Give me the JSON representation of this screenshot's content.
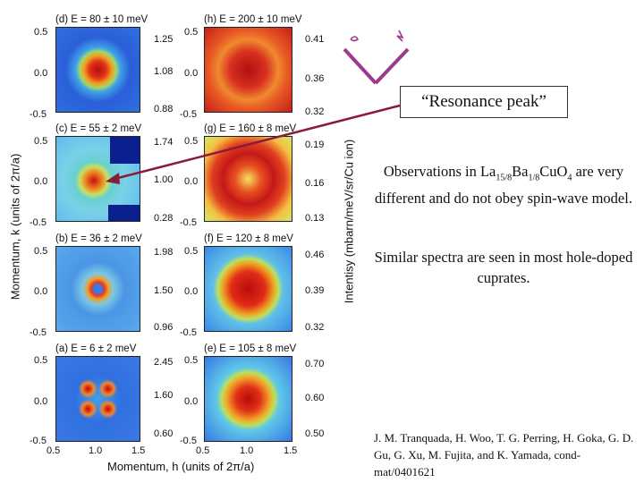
{
  "panels": [
    {
      "id": "d",
      "title": "(d) E = 80 ± 10 meV",
      "cbar": [
        "1.25",
        "1.08",
        "0.88"
      ]
    },
    {
      "id": "h",
      "title": "(h) E = 200 ± 10 meV",
      "cbar": [
        "0.41",
        "0.36",
        "0.32"
      ]
    },
    {
      "id": "c",
      "title": "(c) E = 55 ± 2 meV",
      "cbar": [
        "1.74",
        "1.00",
        "0.28"
      ]
    },
    {
      "id": "g",
      "title": "(g) E = 160 ± 8 meV",
      "cbar": [
        "0.19",
        "0.16",
        "0.13"
      ]
    },
    {
      "id": "b",
      "title": "(b) E = 36 ± 2 meV",
      "cbar": [
        "1.98",
        "1.50",
        "0.96"
      ]
    },
    {
      "id": "f",
      "title": "(f) E = 120 ± 8 meV",
      "cbar": [
        "0.46",
        "0.39",
        "0.32"
      ]
    },
    {
      "id": "a",
      "title": "(a) E = 6 ± 2 meV",
      "cbar": [
        "2.45",
        "1.60",
        "0.60"
      ]
    },
    {
      "id": "e",
      "title": "(e) E = 105 ± 8 meV",
      "cbar": [
        "0.70",
        "0.60",
        "0.50"
      ]
    }
  ],
  "y_ticks": [
    "0.5",
    "0.0",
    "-0.5"
  ],
  "x_ticks": [
    "0.5",
    "1.0",
    "1.5"
  ],
  "y_axis_label": "Momentum, k (units of 2π/a)",
  "x_axis_label": "Momentum, h (units of 2π/a)",
  "intensity_label": "Intentisy (mbarn/meV/sr/Cu ion)",
  "callout": "“Resonance peak”",
  "observation": {
    "prefix": "Observations in La",
    "sub1": "15/8",
    "mid": "Ba",
    "sub2": "1/8",
    "mid2": "CuO",
    "sub3": "4",
    "suffix": " are very different and do not obey spin-wave model."
  },
  "similar": "Similar spectra are seen in most hole-doped cuprates.",
  "reference": "J. M. Tranquada, H. Woo, T. G. Perring, H. Goka, G. D. Gu, G. Xu, M. Fujita, and K. Yamada, cond-mat/0401621",
  "colors": {
    "arrow": "#8b1a3a",
    "chevron": "#9c3a8e",
    "high": "#c81414",
    "low": "#1436c8"
  }
}
